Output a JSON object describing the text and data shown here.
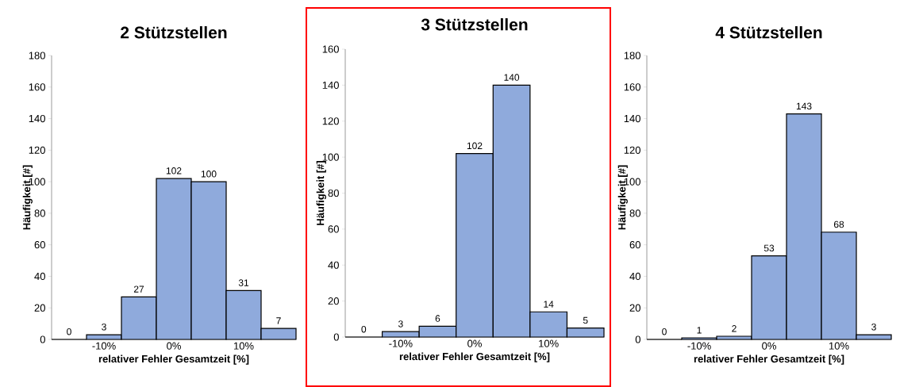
{
  "chart_data": [
    {
      "type": "histogram",
      "title": "2 Stützstellen",
      "xlabel": "relativer Fehler Gesamtzeit [%]",
      "ylabel": "Häufigkeit [#]",
      "bins": [
        -17.5,
        -12.5,
        -7.5,
        -2.5,
        2.5,
        7.5,
        12.5,
        17.5
      ],
      "values": [
        0,
        3,
        27,
        102,
        100,
        31,
        7
      ],
      "color": "#8faadc",
      "data_labels": true,
      "xlim": [
        -17.5,
        17.5
      ],
      "ylim": [
        0,
        180
      ],
      "xticks": [
        {
          "value": -10,
          "label": "-10%"
        },
        {
          "value": 0,
          "label": "0%"
        },
        {
          "value": 10,
          "label": "10%"
        }
      ],
      "yticks": [
        0,
        20,
        40,
        60,
        80,
        100,
        120,
        140,
        160,
        180
      ]
    },
    {
      "type": "histogram",
      "title": "3 Stützstellen",
      "xlabel": "relativer Fehler Gesamtzeit [%]",
      "ylabel": "Häufigkeit [#]",
      "bins": [
        -17.5,
        -12.5,
        -7.5,
        -2.5,
        2.5,
        7.5,
        12.5,
        17.5
      ],
      "values": [
        0,
        3,
        6,
        102,
        140,
        14,
        5
      ],
      "color": "#8faadc",
      "data_labels": true,
      "xlim": [
        -17.5,
        17.5
      ],
      "ylim": [
        0,
        160
      ],
      "xticks": [
        {
          "value": -10,
          "label": "-10%"
        },
        {
          "value": 0,
          "label": "0%"
        },
        {
          "value": 10,
          "label": "10%"
        }
      ],
      "yticks": [
        0,
        20,
        40,
        60,
        80,
        100,
        120,
        140,
        160
      ]
    },
    {
      "type": "histogram",
      "title": "4 Stützstellen",
      "xlabel": "relativer Fehler Gesamtzeit [%]",
      "ylabel": "Häufigkeit [#]",
      "bins": [
        -17.5,
        -12.5,
        -7.5,
        -2.5,
        2.5,
        7.5,
        12.5,
        17.5
      ],
      "values": [
        0,
        1,
        2,
        53,
        143,
        68,
        3
      ],
      "color": "#8faadc",
      "data_labels": true,
      "xlim": [
        -17.5,
        17.5
      ],
      "ylim": [
        0,
        180
      ],
      "xticks": [
        {
          "value": -10,
          "label": "-10%"
        },
        {
          "value": 0,
          "label": "0%"
        },
        {
          "value": 10,
          "label": "10%"
        }
      ],
      "yticks": [
        0,
        20,
        40,
        60,
        80,
        100,
        120,
        140,
        160,
        180
      ]
    }
  ]
}
